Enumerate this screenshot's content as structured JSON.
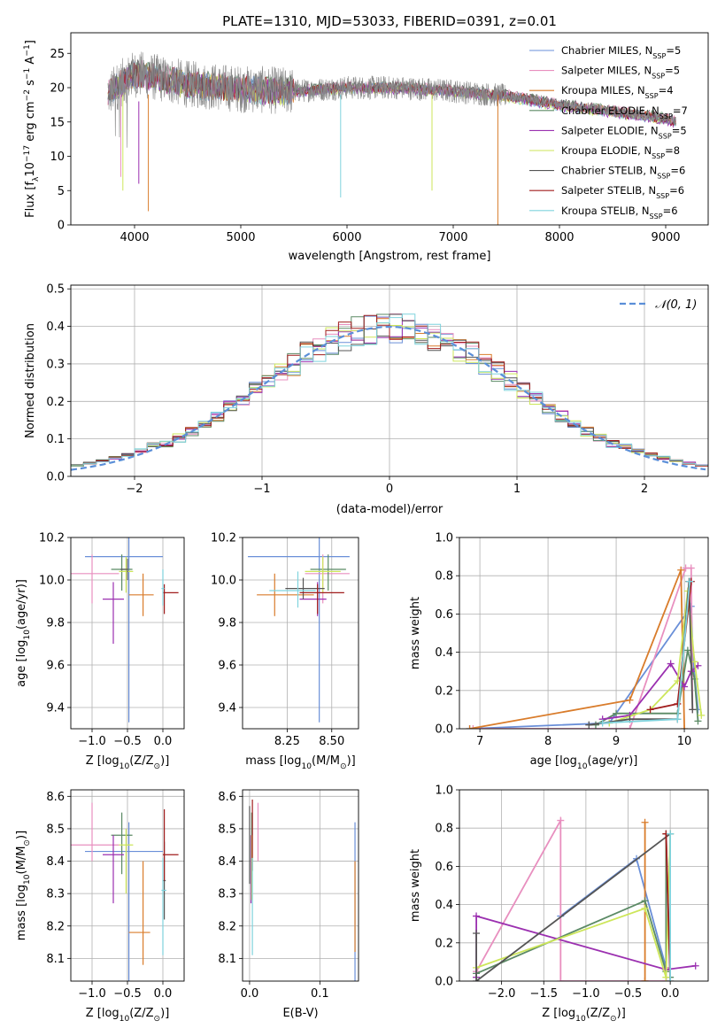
{
  "figure": {
    "title": "PLATE=1310, MJD=53033, FIBERID=0391, z=0.01"
  },
  "series_legend": [
    {
      "label": "Chabrier MILES, N",
      "sub": "SSP",
      "tail": "=5",
      "color": "#6a8fd8"
    },
    {
      "label": "Salpeter MILES, N",
      "sub": "SSP",
      "tail": "=5",
      "color": "#e88fbf"
    },
    {
      "label": "Kroupa MILES, N",
      "sub": "SSP",
      "tail": "=4",
      "color": "#d97c2b"
    },
    {
      "label": "Chabrier ELODIE, N",
      "sub": "SSP",
      "tail": "=7",
      "color": "#5b8a65"
    },
    {
      "label": "Salpeter ELODIE, N",
      "sub": "SSP",
      "tail": "=5",
      "color": "#9b30b0"
    },
    {
      "label": "Kroupa ELODIE, N",
      "sub": "SSP",
      "tail": "=8",
      "color": "#cde65a"
    },
    {
      "label": "Chabrier STELIB, N",
      "sub": "SSP",
      "tail": "=6",
      "color": "#555555"
    },
    {
      "label": "Salpeter STELIB, N",
      "sub": "SSP",
      "tail": "=6",
      "color": "#a01c1c"
    },
    {
      "label": "Kroupa STELIB, N",
      "sub": "SSP",
      "tail": "=6",
      "color": "#7fd3dd"
    }
  ],
  "chart_data": [
    {
      "id": "spectrum",
      "type": "line",
      "xlabel": "wavelength [Angstrom, rest frame]",
      "ylabel_main": "Flux [f",
      "ylabel_mid": "10",
      "ylabel_exp": "−17",
      "ylabel_rest": " erg cm",
      "ylabel_exp2": "−2",
      "ylabel_s": " s",
      "ylabel_exp3": "−1",
      "ylabel_A": " A",
      "ylabel_exp4": "−1",
      "ylabel_end": "]",
      "xlim": [
        3400,
        9400
      ],
      "ylim": [
        0,
        28
      ],
      "xticks": [
        4000,
        5000,
        6000,
        7000,
        8000,
        9000
      ],
      "yticks": [
        0,
        5,
        10,
        15,
        20,
        25
      ],
      "data_envelope": {
        "x": [
          3750,
          3900,
          4000,
          4200,
          4500,
          5000,
          5500,
          6000,
          6500,
          7000,
          7500,
          8000,
          8500,
          9000,
          9100
        ],
        "y": [
          19,
          21,
          22,
          21.5,
          20.5,
          19.8,
          19.5,
          20,
          20,
          19.5,
          18.8,
          17.5,
          16.5,
          15.5,
          15
        ]
      },
      "data_color": "#999999"
    },
    {
      "id": "residuals",
      "type": "histogram",
      "xlabel": "(data-model)/error",
      "ylabel": "Normed distribution",
      "xlim": [
        -2.5,
        2.5
      ],
      "ylim": [
        0,
        0.51
      ],
      "xticks": [
        -2,
        -1,
        0,
        1,
        2
      ],
      "yticks": [
        0,
        0.1,
        0.2,
        0.3,
        0.4,
        0.5
      ],
      "reference_label": "𝒩(0, 1)",
      "reference_color": "#5b8fd8",
      "bin_width": 0.1,
      "grid": true
    },
    {
      "id": "age_vs_Z",
      "type": "errorbar",
      "xlabel": "Z [log",
      "xlabel_sub": "10",
      "xlabel_rest": "(Z/Z",
      "xlabel_sun": "⊙",
      "xlabel_end": ")]",
      "ylabel": "age  [log",
      "ylabel_sub": "10",
      "ylabel_rest": "(age/yr)]",
      "xlim": [
        -1.3,
        0.3
      ],
      "ylim": [
        9.3,
        10.2
      ],
      "xticks": [
        -1.0,
        -0.5,
        0.0
      ],
      "yticks": [
        9.4,
        9.6,
        9.8,
        10.0,
        10.2
      ],
      "points": [
        {
          "x": -0.48,
          "y": 10.11,
          "xerr": [
            0.62,
            0.48
          ],
          "yerr": [
            0.78,
            0.09
          ],
          "c": 0
        },
        {
          "x": -1.0,
          "y": 10.03,
          "xerr": [
            0.3,
            0.38
          ],
          "yerr": [
            0.14,
            0.09
          ],
          "c": 1
        },
        {
          "x": -0.28,
          "y": 9.93,
          "xerr": [
            0.2,
            0.15
          ],
          "yerr": [
            0.1,
            0.1
          ],
          "c": 2
        },
        {
          "x": -0.58,
          "y": 10.05,
          "xerr": [
            0.15,
            0.15
          ],
          "yerr": [
            0.1,
            0.07
          ],
          "c": 3
        },
        {
          "x": -0.7,
          "y": 9.91,
          "xerr": [
            0.15,
            0.15
          ],
          "yerr": [
            0.21,
            0.08
          ],
          "c": 4
        },
        {
          "x": -0.52,
          "y": 10.04,
          "xerr": [
            0.1,
            0.1
          ],
          "yerr": [
            0.1,
            0.07
          ],
          "c": 5
        },
        {
          "x": -0.5,
          "y": 10.05,
          "xerr": [
            0.1,
            0.0
          ],
          "yerr": [
            0.05,
            0.05
          ],
          "c": 6
        },
        {
          "x": 0.02,
          "y": 9.94,
          "xerr": [
            0.02,
            0.2
          ],
          "yerr": [
            0.1,
            0.04
          ],
          "c": 7
        },
        {
          "x": 0.0,
          "y": 9.96,
          "xerr": [
            0.02,
            0.02
          ],
          "yerr": [
            0.08,
            0.09
          ],
          "c": 8
        }
      ]
    },
    {
      "id": "age_vs_mass",
      "type": "errorbar",
      "xlabel": "mass [log",
      "xlabel_sub": "10",
      "xlabel_rest": "(M/M",
      "xlabel_sun": "⊙",
      "xlabel_end": ")]",
      "xlim": [
        8.0,
        8.65
      ],
      "ylim": [
        9.3,
        10.2
      ],
      "xticks": [
        8.25,
        8.5
      ],
      "yticks": [
        9.4,
        9.6,
        9.8,
        10.0,
        10.2
      ],
      "points": [
        {
          "x": 8.43,
          "y": 10.11,
          "xerr": [
            0.4,
            0.17
          ],
          "yerr": [
            0.78,
            0.09
          ],
          "c": 0
        },
        {
          "x": 8.45,
          "y": 10.03,
          "xerr": [
            0.1,
            0.15
          ],
          "yerr": [
            0.14,
            0.09
          ],
          "c": 1
        },
        {
          "x": 8.18,
          "y": 9.93,
          "xerr": [
            0.1,
            0.22
          ],
          "yerr": [
            0.1,
            0.1
          ],
          "c": 2
        },
        {
          "x": 8.48,
          "y": 10.05,
          "xerr": [
            0.1,
            0.1
          ],
          "yerr": [
            0.1,
            0.07
          ],
          "c": 3
        },
        {
          "x": 8.42,
          "y": 9.91,
          "xerr": [
            0.1,
            0.05
          ],
          "yerr": [
            0.08,
            0.08
          ],
          "c": 4
        },
        {
          "x": 8.45,
          "y": 10.04,
          "xerr": [
            0.1,
            0.1
          ],
          "yerr": [
            0.1,
            0.07
          ],
          "c": 5
        },
        {
          "x": 8.34,
          "y": 9.96,
          "xerr": [
            0.1,
            0.12
          ],
          "yerr": [
            0.05,
            0.05
          ],
          "c": 6
        },
        {
          "x": 8.42,
          "y": 9.94,
          "xerr": [
            0.1,
            0.15
          ],
          "yerr": [
            0.1,
            0.04
          ],
          "c": 7
        },
        {
          "x": 8.31,
          "y": 9.95,
          "xerr": [
            0.16,
            0.1
          ],
          "yerr": [
            0.08,
            0.09
          ],
          "c": 8
        }
      ]
    },
    {
      "id": "massweight_vs_age",
      "type": "line",
      "xlabel": "age  [log",
      "xlabel_sub": "10",
      "xlabel_rest": "(age/yr)]",
      "ylabel": "mass weight",
      "xlim": [
        6.7,
        10.35
      ],
      "ylim": [
        0,
        1.0
      ],
      "xticks": [
        7,
        8,
        9,
        10
      ],
      "yticks": [
        0,
        0.2,
        0.4,
        0.6,
        0.8,
        1.0
      ],
      "series": [
        {
          "c": 0,
          "x": [
            6.85,
            8.9,
            10.1,
            10.13,
            10.2
          ],
          "y": [
            0.0,
            0.03,
            0.64,
            0.35,
            0.1
          ]
        },
        {
          "c": 1,
          "x": [
            6.9,
            9.2,
            10.02,
            10.1,
            10.12
          ],
          "y": [
            0.0,
            0.0,
            0.84,
            0.84,
            0.1
          ]
        },
        {
          "c": 2,
          "x": [
            6.85,
            9.2,
            9.95,
            10.0
          ],
          "y": [
            0.0,
            0.15,
            0.83,
            0.0
          ]
        },
        {
          "c": 3,
          "x": [
            8.7,
            9.0,
            9.9,
            10.05,
            10.15,
            10.2
          ],
          "y": [
            0.02,
            0.08,
            0.08,
            0.41,
            0.26,
            0.04
          ]
        },
        {
          "c": 4,
          "x": [
            8.8,
            9.2,
            9.8,
            10.0,
            10.1,
            10.2
          ],
          "y": [
            0.05,
            0.07,
            0.34,
            0.22,
            0.3,
            0.33
          ]
        },
        {
          "c": 5,
          "x": [
            8.9,
            9.5,
            9.9,
            10.05,
            10.15,
            10.25
          ],
          "y": [
            0.03,
            0.1,
            0.25,
            0.72,
            0.35,
            0.07
          ]
        },
        {
          "c": 6,
          "x": [
            8.6,
            9.2,
            9.9,
            10.07,
            10.12
          ],
          "y": [
            0.02,
            0.05,
            0.05,
            0.77,
            0.1
          ]
        },
        {
          "c": 7,
          "x": [
            9.5,
            9.9,
            10.1
          ],
          "y": [
            0.1,
            0.13,
            0.77
          ]
        },
        {
          "c": 8,
          "x": [
            8.8,
            9.9,
            10.08
          ],
          "y": [
            0.03,
            0.05,
            0.77
          ]
        }
      ]
    },
    {
      "id": "mass_vs_Z",
      "type": "errorbar",
      "xlabel": "Z [log",
      "xlabel_sub": "10",
      "xlabel_rest": "(Z/Z",
      "xlabel_sun": "⊙",
      "xlabel_end": ")]",
      "ylabel": "mass [log",
      "ylabel_sub": "10",
      "ylabel_rest": "(M/M",
      "ylabel_sun": "⊙",
      "ylabel_end": ")]",
      "xlim": [
        -1.3,
        0.3
      ],
      "ylim": [
        8.03,
        8.62
      ],
      "xticks": [
        -1.0,
        -0.5,
        0.0
      ],
      "yticks": [
        8.1,
        8.2,
        8.3,
        8.4,
        8.5,
        8.6
      ],
      "points": [
        {
          "x": -0.48,
          "y": 8.43,
          "xerr": [
            0.62,
            0.48
          ],
          "yerr": [
            0.4,
            0.09
          ],
          "c": 0
        },
        {
          "x": -1.0,
          "y": 8.45,
          "xerr": [
            0.3,
            0.38
          ],
          "yerr": [
            0.05,
            0.13
          ],
          "c": 1
        },
        {
          "x": -0.28,
          "y": 8.18,
          "xerr": [
            0.2,
            0.1
          ],
          "yerr": [
            0.1,
            0.22
          ],
          "c": 2
        },
        {
          "x": -0.58,
          "y": 8.48,
          "xerr": [
            0.15,
            0.15
          ],
          "yerr": [
            0.12,
            0.07
          ],
          "c": 3
        },
        {
          "x": -0.7,
          "y": 8.42,
          "xerr": [
            0.15,
            0.15
          ],
          "yerr": [
            0.15,
            0.06
          ],
          "c": 4
        },
        {
          "x": -0.52,
          "y": 8.45,
          "xerr": [
            0.1,
            0.1
          ],
          "yerr": [
            0.15,
            0.05
          ],
          "c": 5
        },
        {
          "x": 0.02,
          "y": 8.34,
          "xerr": [
            0.02,
            0.02
          ],
          "yerr": [
            0.12,
            0.12
          ],
          "c": 6
        },
        {
          "x": 0.02,
          "y": 8.42,
          "xerr": [
            0.02,
            0.2
          ],
          "yerr": [
            0.08,
            0.14
          ],
          "c": 7
        },
        {
          "x": 0.0,
          "y": 8.31,
          "xerr": [
            0.02,
            0.05
          ],
          "yerr": [
            0.2,
            0.1
          ],
          "c": 8
        }
      ]
    },
    {
      "id": "mass_vs_EBV",
      "type": "errorbar",
      "xlabel": "E(B-V)",
      "xlim": [
        -0.01,
        0.155
      ],
      "ylim": [
        8.03,
        8.62
      ],
      "xticks": [
        0.0,
        0.1
      ],
      "yticks": [
        8.1,
        8.2,
        8.3,
        8.4,
        8.5,
        8.6
      ],
      "points": [
        {
          "x": 0.15,
          "y": 8.43,
          "xerr": [
            0,
            0
          ],
          "yerr": [
            0.4,
            0.09
          ],
          "c": 0
        },
        {
          "x": 0.012,
          "y": 8.45,
          "xerr": [
            0,
            0
          ],
          "yerr": [
            0.05,
            0.13
          ],
          "c": 1
        },
        {
          "x": 0.15,
          "y": 8.22,
          "xerr": [
            0,
            0
          ],
          "yerr": [
            0.1,
            0.18
          ],
          "c": 2
        },
        {
          "x": 0.003,
          "y": 8.48,
          "xerr": [
            0,
            0
          ],
          "yerr": [
            0.12,
            0.07
          ],
          "c": 3
        },
        {
          "x": 0.002,
          "y": 8.42,
          "xerr": [
            0,
            0
          ],
          "yerr": [
            0.15,
            0.06
          ],
          "c": 4
        },
        {
          "x": 0.003,
          "y": 8.43,
          "xerr": [
            0,
            0
          ],
          "yerr": [
            0.15,
            0.05
          ],
          "c": 5
        },
        {
          "x": 0.0,
          "y": 8.45,
          "xerr": [
            0,
            0
          ],
          "yerr": [
            0.12,
            0.12
          ],
          "c": 6
        },
        {
          "x": 0.004,
          "y": 8.45,
          "xerr": [
            0,
            0
          ],
          "yerr": [
            0.08,
            0.14
          ],
          "c": 7
        },
        {
          "x": 0.004,
          "y": 8.31,
          "xerr": [
            0,
            0
          ],
          "yerr": [
            0.2,
            0.1
          ],
          "c": 8
        }
      ]
    },
    {
      "id": "massweight_vs_Z",
      "type": "line",
      "xlabel": "Z [log",
      "xlabel_sub": "10",
      "xlabel_rest": "(Z/Z",
      "xlabel_sun": "⊙",
      "xlabel_end": ")]",
      "ylabel": "mass weight",
      "xlim": [
        -2.5,
        0.45
      ],
      "ylim": [
        0,
        1.0
      ],
      "xticks": [
        -2.0,
        -1.5,
        -1.0,
        -0.5,
        0.0
      ],
      "yticks": [
        0,
        0.2,
        0.4,
        0.6,
        0.8,
        1.0
      ],
      "series": [
        {
          "c": 0,
          "x": [
            -1.3,
            -0.4,
            -0.05,
            -0.05
          ],
          "y": [
            0.34,
            0.64,
            0.07,
            0.0
          ]
        },
        {
          "c": 1,
          "x": [
            -2.3,
            -1.3,
            -1.3,
            -0.05,
            -0.05
          ],
          "y": [
            0.05,
            0.84,
            0.0,
            0.0,
            0.07
          ]
        },
        {
          "c": 2,
          "x": [
            -0.3,
            -0.3,
            -0.3
          ],
          "y": [
            0.0,
            0.83,
            0.0
          ]
        },
        {
          "c": 3,
          "x": [
            -2.3,
            -0.3,
            -0.05,
            -0.05,
            0.0
          ],
          "y": [
            0.04,
            0.42,
            0.05,
            0.77,
            0.02
          ]
        },
        {
          "c": 4,
          "x": [
            -2.3,
            -2.3,
            -0.05,
            0.3
          ],
          "y": [
            0.02,
            0.34,
            0.06,
            0.08
          ]
        },
        {
          "c": 5,
          "x": [
            -2.3,
            -0.3,
            -0.05,
            0.0
          ],
          "y": [
            0.07,
            0.38,
            0.02,
            0.77
          ]
        },
        {
          "c": 6,
          "x": [
            -2.3,
            -2.3,
            0.0
          ],
          "y": [
            0.25,
            0.0,
            0.77
          ]
        },
        {
          "c": 7,
          "x": [
            -0.05,
            0.0
          ],
          "y": [
            0.77,
            0.0
          ]
        },
        {
          "c": 8,
          "x": [
            0.0,
            0.0
          ],
          "y": [
            0.77,
            0.0
          ]
        }
      ]
    }
  ]
}
